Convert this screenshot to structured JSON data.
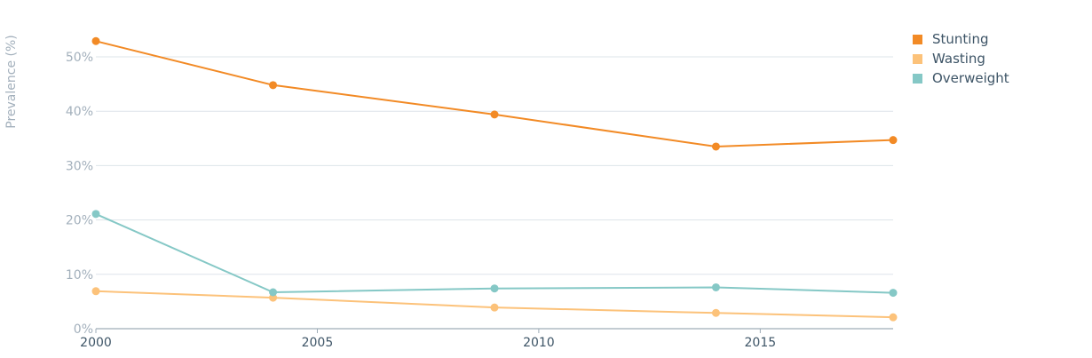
{
  "chart_data": {
    "type": "line",
    "ylabel": "Prevalence (%)",
    "xlabel": "",
    "xlim": [
      2000,
      2018
    ],
    "ylim": [
      0,
      55
    ],
    "x_ticks": [
      2000,
      2005,
      2010,
      2015
    ],
    "x_tick_labels": [
      "2000",
      "2005",
      "2010",
      "2015"
    ],
    "y_ticks": [
      0,
      10,
      20,
      30,
      40,
      50
    ],
    "y_tick_labels": [
      "0%",
      "10%",
      "20%",
      "30%",
      "40%",
      "50%"
    ],
    "grid": "horizontal",
    "legend_position": "top-right",
    "series": [
      {
        "name": "Stunting",
        "color": "#f28a25",
        "points": [
          [
            2000,
            52.9
          ],
          [
            2004,
            44.8
          ],
          [
            2009,
            39.4
          ],
          [
            2014,
            33.5
          ],
          [
            2018,
            34.7
          ]
        ]
      },
      {
        "name": "Wasting",
        "color": "#fcc27a",
        "points": [
          [
            2000,
            6.9
          ],
          [
            2004,
            5.7
          ],
          [
            2009,
            3.9
          ],
          [
            2014,
            2.9
          ],
          [
            2018,
            2.1
          ]
        ]
      },
      {
        "name": "Overweight",
        "color": "#85c8c6",
        "points": [
          [
            2000,
            21.1
          ],
          [
            2004,
            6.7
          ],
          [
            2009,
            7.4
          ],
          [
            2014,
            7.6
          ],
          [
            2018,
            6.6
          ]
        ]
      }
    ]
  }
}
